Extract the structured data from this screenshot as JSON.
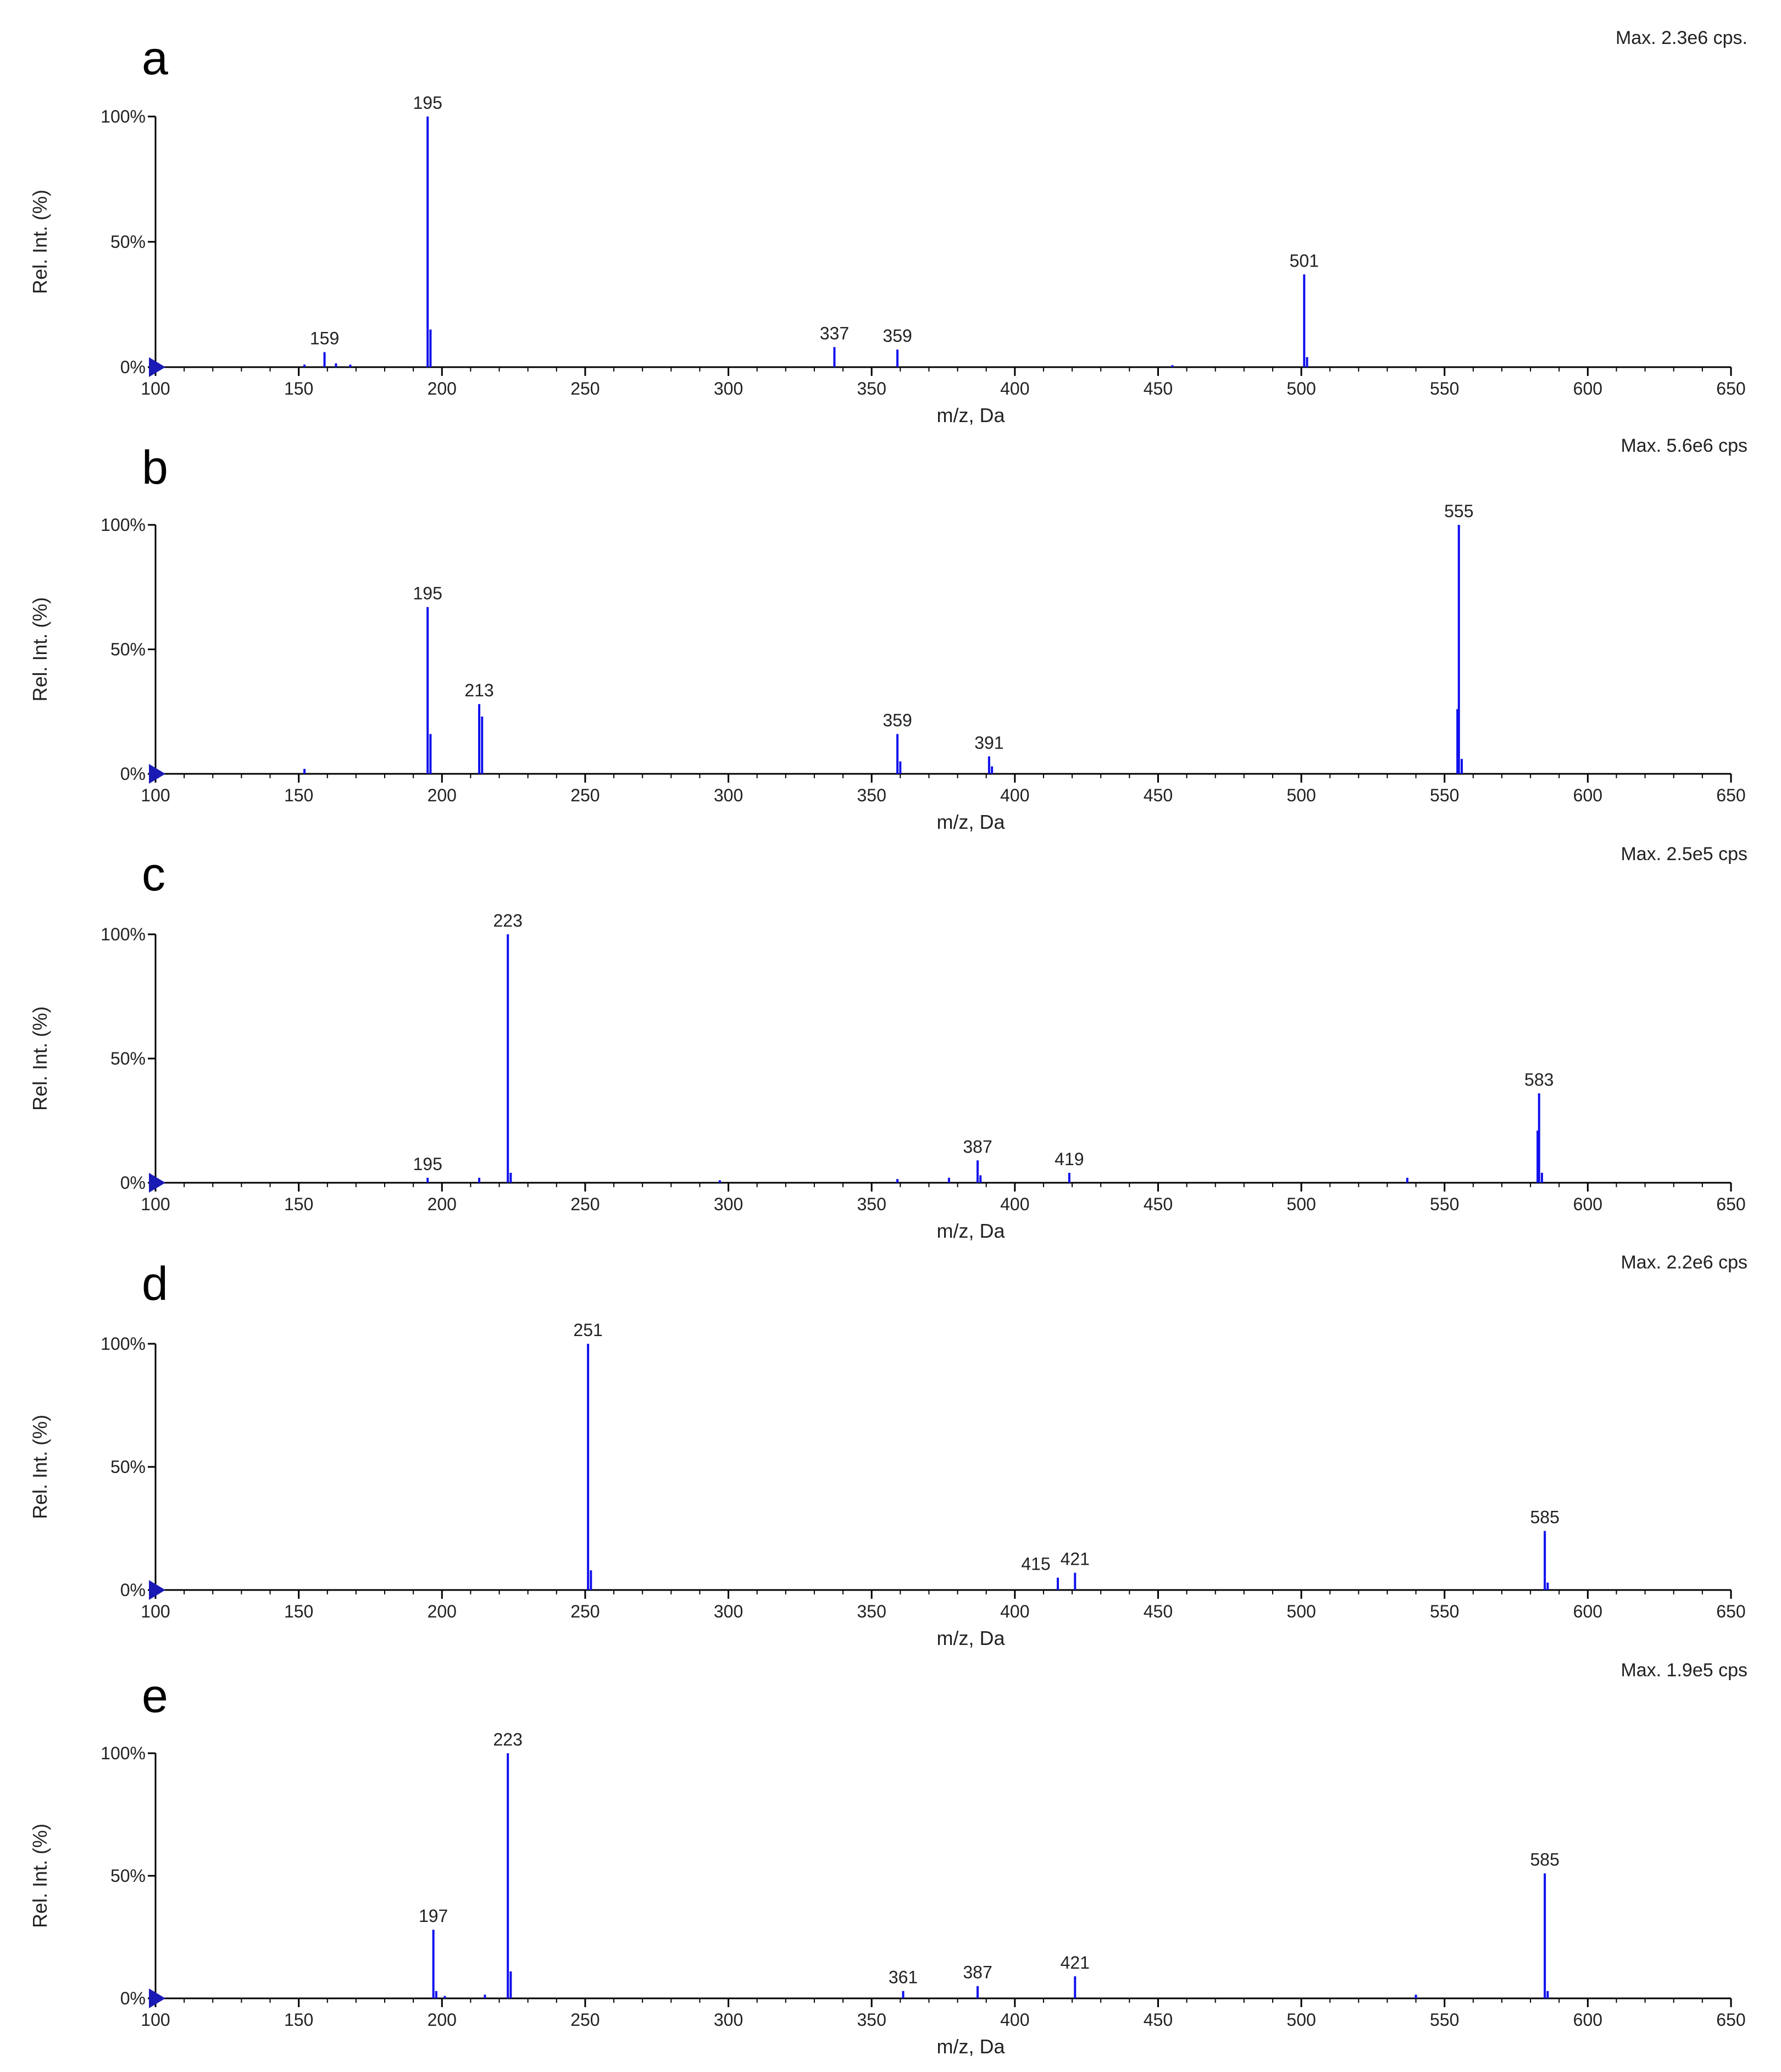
{
  "chart_data": [
    {
      "panel": "a",
      "type": "bar",
      "max_intensity": "Max. 2.3e6 cps.",
      "xlabel": "m/z, Da",
      "ylabel": "Rel. Int. (%)",
      "xlim": [
        100,
        650
      ],
      "ylim": [
        0,
        100
      ],
      "x_ticks": [
        "100",
        "150",
        "200",
        "250",
        "300",
        "350",
        "400",
        "450",
        "500",
        "550",
        "600",
        "650"
      ],
      "y_ticks": [
        "0%",
        "50%",
        "100%"
      ],
      "peaks": [
        {
          "mz": 152,
          "int": 1
        },
        {
          "mz": 159,
          "int": 6,
          "label": "159"
        },
        {
          "mz": 163,
          "int": 1.5
        },
        {
          "mz": 168,
          "int": 1
        },
        {
          "mz": 195,
          "int": 100,
          "label": "195"
        },
        {
          "mz": 196,
          "int": 15
        },
        {
          "mz": 337,
          "int": 8,
          "label": "337"
        },
        {
          "mz": 359,
          "int": 7,
          "label": "359"
        },
        {
          "mz": 455,
          "int": 0.8
        },
        {
          "mz": 501,
          "int": 37,
          "label": "501"
        },
        {
          "mz": 502,
          "int": 4
        }
      ]
    },
    {
      "panel": "b",
      "type": "bar",
      "max_intensity": "Max. 5.6e6 cps",
      "xlabel": "m/z, Da",
      "ylabel": "Rel. Int. (%)",
      "xlim": [
        100,
        650
      ],
      "ylim": [
        0,
        100
      ],
      "x_ticks": [
        "100",
        "150",
        "200",
        "250",
        "300",
        "350",
        "400",
        "450",
        "500",
        "550",
        "600",
        "650"
      ],
      "y_ticks": [
        "0%",
        "50%",
        "100%"
      ],
      "peaks": [
        {
          "mz": 152,
          "int": 2
        },
        {
          "mz": 195,
          "int": 67,
          "label": "195"
        },
        {
          "mz": 196,
          "int": 16
        },
        {
          "mz": 213,
          "int": 28,
          "label": "213"
        },
        {
          "mz": 214,
          "int": 23
        },
        {
          "mz": 359,
          "int": 16,
          "label": "359"
        },
        {
          "mz": 360,
          "int": 5
        },
        {
          "mz": 391,
          "int": 7,
          "label": "391"
        },
        {
          "mz": 392,
          "int": 3
        },
        {
          "mz": 555,
          "int": 100,
          "label": "555"
        },
        {
          "mz": 554.5,
          "int": 26
        },
        {
          "mz": 556,
          "int": 6
        }
      ]
    },
    {
      "panel": "c",
      "type": "bar",
      "max_intensity": "Max. 2.5e5 cps",
      "xlabel": "m/z, Da",
      "ylabel": "Rel. Int. (%)",
      "xlim": [
        100,
        650
      ],
      "ylim": [
        0,
        100
      ],
      "x_ticks": [
        "100",
        "150",
        "200",
        "250",
        "300",
        "350",
        "400",
        "450",
        "500",
        "550",
        "600",
        "650"
      ],
      "y_ticks": [
        "0%",
        "50%",
        "100%"
      ],
      "peaks": [
        {
          "mz": 195,
          "int": 2,
          "label": "195"
        },
        {
          "mz": 213,
          "int": 2
        },
        {
          "mz": 223,
          "int": 100,
          "label": "223"
        },
        {
          "mz": 224,
          "int": 4
        },
        {
          "mz": 297,
          "int": 1
        },
        {
          "mz": 359,
          "int": 1.5
        },
        {
          "mz": 377,
          "int": 2
        },
        {
          "mz": 387,
          "int": 9,
          "label": "387"
        },
        {
          "mz": 388,
          "int": 3
        },
        {
          "mz": 419,
          "int": 4,
          "label": "419"
        },
        {
          "mz": 537,
          "int": 2
        },
        {
          "mz": 583,
          "int": 36,
          "label": "583"
        },
        {
          "mz": 582.5,
          "int": 21
        },
        {
          "mz": 584,
          "int": 4
        }
      ]
    },
    {
      "panel": "d",
      "type": "bar",
      "max_intensity": "Max. 2.2e6 cps",
      "xlabel": "m/z, Da",
      "ylabel": "Rel. Int. (%)",
      "xlim": [
        100,
        650
      ],
      "ylim": [
        0,
        100
      ],
      "x_ticks": [
        "100",
        "150",
        "200",
        "250",
        "300",
        "350",
        "400",
        "450",
        "500",
        "550",
        "600",
        "650"
      ],
      "y_ticks": [
        "0%",
        "50%",
        "100%"
      ],
      "peaks": [
        {
          "mz": 251,
          "int": 100,
          "label": "251"
        },
        {
          "mz": 252,
          "int": 8
        },
        {
          "mz": 415,
          "int": 5,
          "label": "415"
        },
        {
          "mz": 421,
          "int": 7,
          "label": "421"
        },
        {
          "mz": 585,
          "int": 24,
          "label": "585"
        },
        {
          "mz": 586,
          "int": 3
        }
      ]
    },
    {
      "panel": "e",
      "type": "bar",
      "max_intensity": "Max. 1.9e5 cps",
      "xlabel": "m/z, Da",
      "ylabel": "Rel. Int. (%)",
      "xlim": [
        100,
        650
      ],
      "ylim": [
        0,
        100
      ],
      "x_ticks": [
        "100",
        "150",
        "200",
        "250",
        "300",
        "350",
        "400",
        "450",
        "500",
        "550",
        "600",
        "650"
      ],
      "y_ticks": [
        "0%",
        "50%",
        "100%"
      ],
      "peaks": [
        {
          "mz": 197,
          "int": 28,
          "label": "197"
        },
        {
          "mz": 198,
          "int": 3
        },
        {
          "mz": 201,
          "int": 1
        },
        {
          "mz": 215,
          "int": 1.5
        },
        {
          "mz": 223,
          "int": 100,
          "label": "223"
        },
        {
          "mz": 224,
          "int": 11
        },
        {
          "mz": 361,
          "int": 3,
          "label": "361"
        },
        {
          "mz": 387,
          "int": 5,
          "label": "387"
        },
        {
          "mz": 421,
          "int": 9,
          "label": "421"
        },
        {
          "mz": 540,
          "int": 1.5
        },
        {
          "mz": 585,
          "int": 51,
          "label": "585"
        },
        {
          "mz": 586,
          "int": 3
        }
      ]
    }
  ],
  "colors": {
    "peak": "#1010ee",
    "axis": "#000000",
    "marker": "#1a1ab4"
  }
}
